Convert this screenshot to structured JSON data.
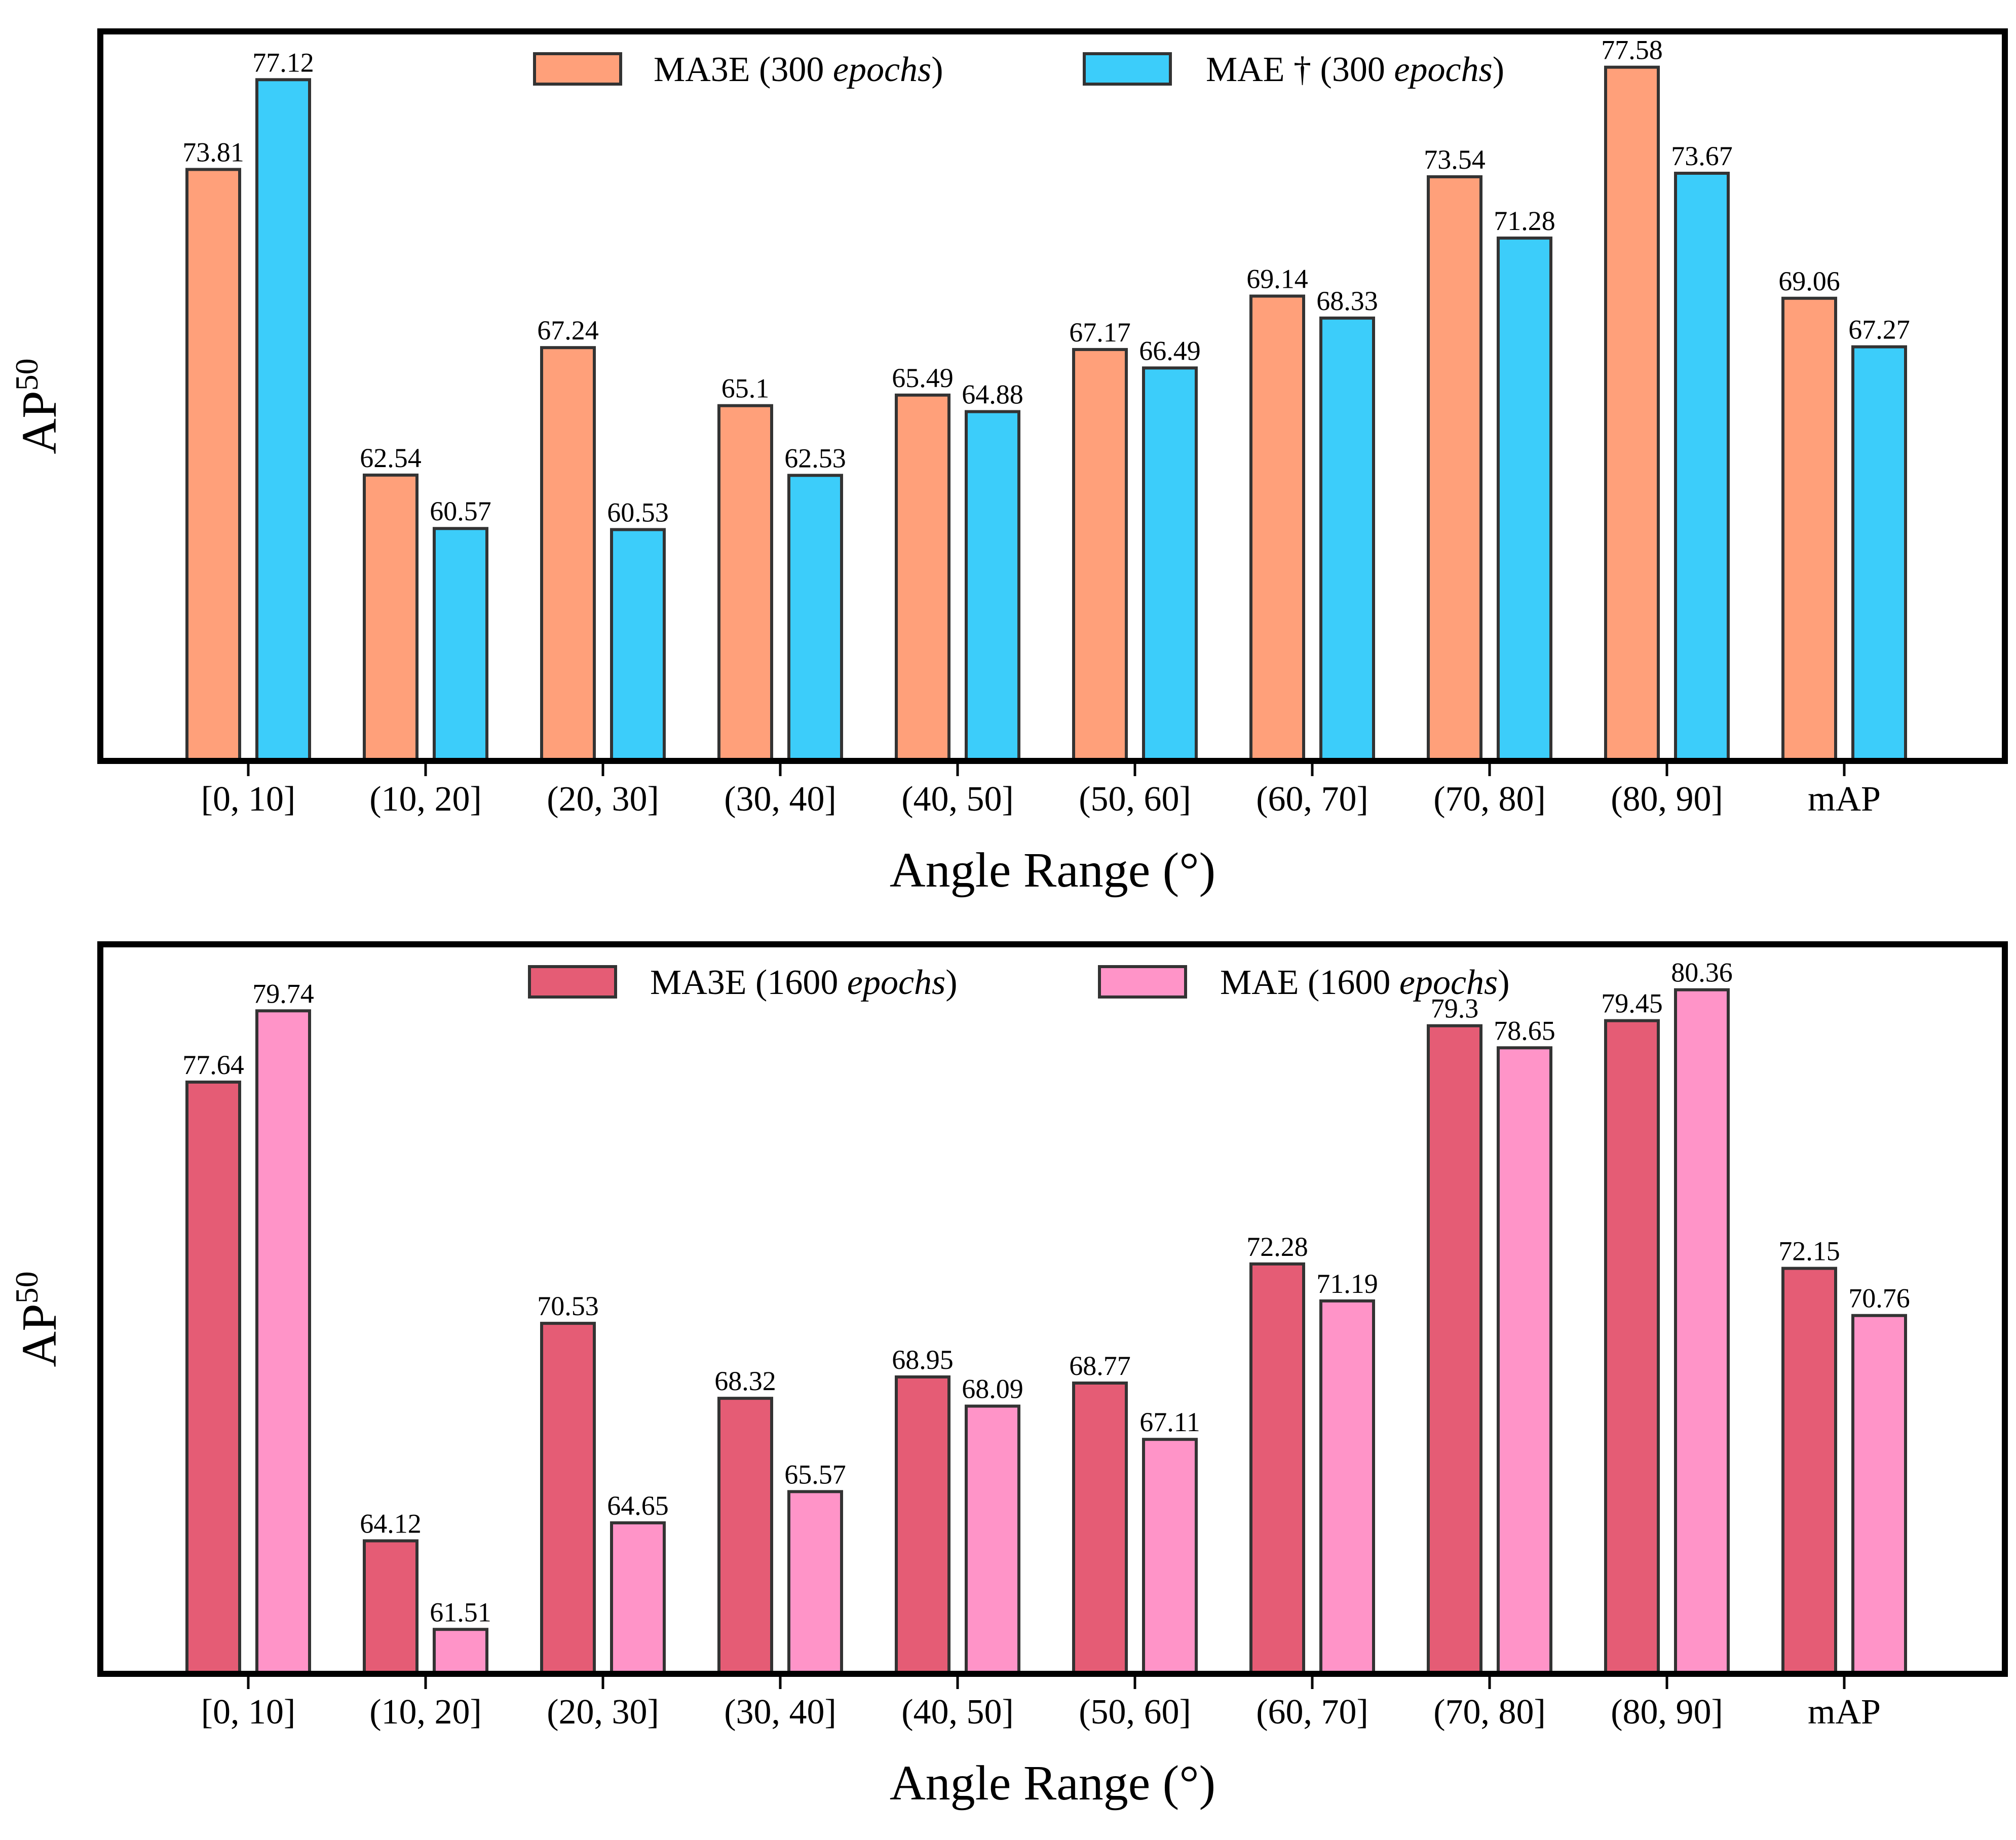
{
  "chart_data": [
    {
      "type": "bar",
      "categories": [
        "[0, 10]",
        "(10, 20]",
        "(20, 30]",
        "(30, 40]",
        "(40, 50]",
        "(50, 60]",
        "(60, 70]",
        "(70, 80]",
        "(80, 90]",
        "mAP"
      ],
      "series": [
        {
          "name": "MA3E (300 epochs)",
          "label_main": "MA3E (300 ",
          "label_italic": "epochs",
          "label_tail": ")",
          "color": "#ffa07a",
          "values": [
            73.81,
            62.54,
            67.24,
            65.1,
            65.49,
            67.17,
            69.14,
            73.54,
            77.58,
            69.06
          ]
        },
        {
          "name": "MAE † (300 epochs)",
          "label_main": "MAE † (300 ",
          "label_italic": "epochs",
          "label_tail": ")",
          "color": "#3ccdfa",
          "values": [
            77.12,
            60.57,
            60.53,
            62.53,
            64.88,
            66.49,
            68.33,
            71.28,
            73.67,
            67.27
          ]
        }
      ],
      "xlabel": "Angle Range (°)",
      "ylabel": "AP",
      "ylabel_sup": "50",
      "ylim": [
        52,
        78.9
      ],
      "legend": "top-center",
      "grid": false
    },
    {
      "type": "bar",
      "categories": [
        "[0, 10]",
        "(10, 20]",
        "(20, 30]",
        "(30, 40]",
        "(40, 50]",
        "(50, 60]",
        "(60, 70]",
        "(70, 80]",
        "(80, 90]",
        "mAP"
      ],
      "series": [
        {
          "name": "MA3E (1600 epochs)",
          "label_main": "MA3E (1600 ",
          "label_italic": "epochs",
          "label_tail": ")",
          "color": "#e55c75",
          "values": [
            77.64,
            64.12,
            70.53,
            68.32,
            68.95,
            68.77,
            72.28,
            79.3,
            79.45,
            72.15
          ]
        },
        {
          "name": "MAE (1600 epochs)",
          "label_main": "MAE (1600 ",
          "label_italic": "epochs",
          "label_tail": ")",
          "color": "#ff94c8",
          "values": [
            79.74,
            61.51,
            64.65,
            65.57,
            68.09,
            67.11,
            71.19,
            78.65,
            80.36,
            70.76
          ]
        }
      ],
      "xlabel": "Angle Range (°)",
      "ylabel": "AP",
      "ylabel_sup": "50",
      "ylim": [
        60.2,
        81.7
      ],
      "legend": "top-center",
      "grid": false
    }
  ]
}
